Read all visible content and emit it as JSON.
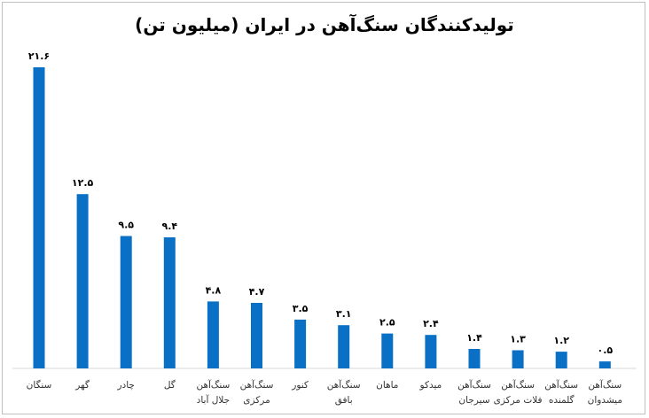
{
  "chart_data": {
    "type": "bar",
    "title": "تولیدکنندگان سنگ‌آهن در ایران (میلیون تن)",
    "categories": [
      [
        "سنگان"
      ],
      [
        "گهر"
      ],
      [
        "چادر"
      ],
      [
        "گل"
      ],
      [
        "سنگ‌آهن",
        "جلال آباد"
      ],
      [
        "سنگ‌آهن",
        "مرکزی"
      ],
      [
        "کنور"
      ],
      [
        "سنگ‌آهن",
        "بافق"
      ],
      [
        "ماهان"
      ],
      [
        "میدکو"
      ],
      [
        "سنگ‌آهن",
        "سیرجان"
      ],
      [
        "سنگ‌آهن",
        "فلات مرکزی"
      ],
      [
        "سنگ‌آهن",
        "گلمنده"
      ],
      [
        "سنگ‌آهن",
        "میشدوان"
      ]
    ],
    "values": [
      21.6,
      12.5,
      9.5,
      9.4,
      4.8,
      4.7,
      3.5,
      3.1,
      2.5,
      2.4,
      1.4,
      1.3,
      1.2,
      0.5
    ],
    "value_labels": [
      "۲۱.۶",
      "۱۲.۵",
      "۹.۵",
      "۹.۴",
      "۴.۸",
      "۴.۷",
      "۳.۵",
      "۳.۱",
      "۲.۵",
      "۲.۴",
      "۱.۴",
      "۱.۳",
      "۱.۲",
      "۰.۵"
    ],
    "bar_color": "#0A70C6",
    "grid": false,
    "legend": "none"
  }
}
